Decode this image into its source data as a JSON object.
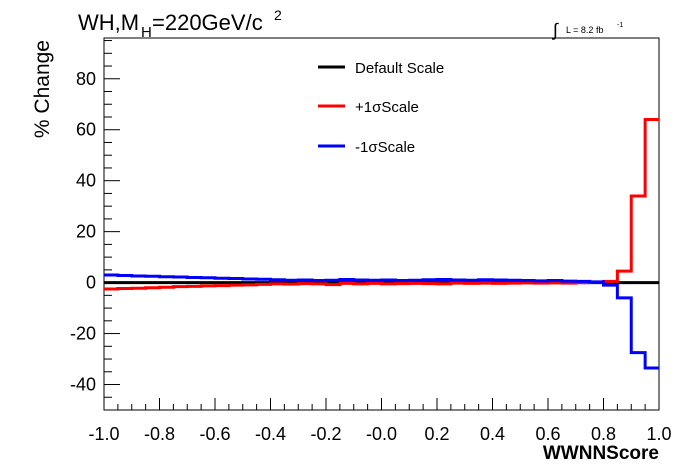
{
  "chart_data": {
    "type": "line",
    "style": "step",
    "title_main": "WH,M",
    "title_sub": "H",
    "title_rest": "=220GeV/c",
    "title_sup": "2",
    "lumi_integral": "∫",
    "lumi_text": "L = 8.2 fb",
    "lumi_sup": "-1",
    "ylabel": "% Change",
    "xlabel": "WWNNScore",
    "xlim": [
      -1.0,
      1.0
    ],
    "ylim": [
      -50,
      96
    ],
    "x_tick_labels": [
      "-1.0",
      "-0.8",
      "-0.6",
      "-0.4",
      "-0.2",
      "-0.0",
      "0.2",
      "0.4",
      "0.6",
      "0.8",
      "1.0"
    ],
    "y_tick_labels": [
      "-40",
      "-20",
      "0",
      "20",
      "40",
      "60",
      "80"
    ],
    "legend_placement": "top-center",
    "grid": false,
    "bin_edges": [
      -1.0,
      -0.95,
      -0.9,
      -0.85,
      -0.8,
      -0.75,
      -0.7,
      -0.65,
      -0.6,
      -0.55,
      -0.5,
      -0.45,
      -0.4,
      -0.35,
      -0.3,
      -0.25,
      -0.2,
      -0.15,
      -0.1,
      -0.05,
      0.0,
      0.05,
      0.1,
      0.15,
      0.2,
      0.25,
      0.3,
      0.35,
      0.4,
      0.45,
      0.5,
      0.55,
      0.6,
      0.65,
      0.7,
      0.75,
      0.8,
      0.85,
      0.9,
      0.95,
      1.0
    ],
    "series": [
      {
        "name": "Default Scale",
        "color": "#000000",
        "values": [
          0,
          0,
          0,
          0,
          0,
          0,
          0,
          0,
          0,
          0,
          0,
          0,
          0,
          0,
          0,
          0,
          0,
          0,
          0,
          0,
          0,
          0,
          0,
          0,
          0,
          0,
          0,
          0,
          0,
          0,
          0,
          0,
          0,
          0,
          0,
          0,
          0,
          0,
          0,
          0
        ]
      },
      {
        "name": "+1σScale",
        "color": "#ff0000",
        "values": [
          -2.5,
          -2.3,
          -2.2,
          -2.0,
          -1.8,
          -1.6,
          -1.5,
          -1.3,
          -1.2,
          -1.0,
          -0.9,
          -0.7,
          -0.5,
          -0.6,
          -0.4,
          -0.5,
          -0.8,
          -0.3,
          -0.5,
          -0.3,
          -0.5,
          -0.4,
          -0.3,
          -0.4,
          -0.5,
          -0.2,
          -0.3,
          -0.2,
          -0.3,
          -0.2,
          -0.1,
          -0.2,
          -0.1,
          -0.2,
          0.0,
          0.2,
          0.5,
          4.5,
          34.0,
          64.0
        ]
      },
      {
        "name": "-1σScale",
        "color": "#0000ff",
        "values": [
          3.0,
          2.8,
          2.6,
          2.5,
          2.3,
          2.2,
          2.0,
          1.9,
          1.7,
          1.6,
          1.4,
          1.3,
          1.1,
          0.9,
          1.0,
          0.8,
          0.9,
          1.2,
          1.0,
          0.9,
          1.0,
          0.8,
          0.9,
          1.1,
          1.2,
          1.0,
          0.9,
          1.1,
          1.0,
          0.9,
          0.8,
          0.7,
          0.8,
          0.6,
          0.5,
          0.3,
          -1.0,
          -6.0,
          -27.5,
          -33.5
        ]
      }
    ]
  }
}
